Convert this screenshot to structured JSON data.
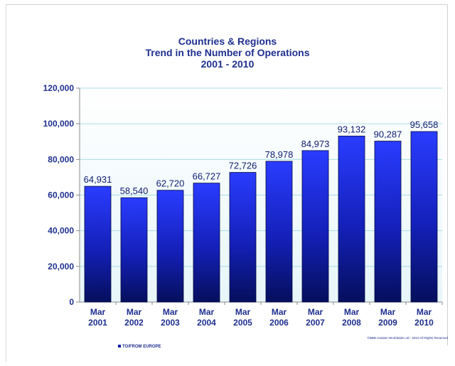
{
  "chart_data": {
    "type": "bar",
    "title": [
      "Countries & Regions",
      "Trend in the Number of Operations",
      "2001 - 2010"
    ],
    "categories": [
      [
        "Mar",
        "2001"
      ],
      [
        "Mar",
        "2002"
      ],
      [
        "Mar",
        "2003"
      ],
      [
        "Mar",
        "2004"
      ],
      [
        "Mar",
        "2005"
      ],
      [
        "Mar",
        "2006"
      ],
      [
        "Mar",
        "2007"
      ],
      [
        "Mar",
        "2008"
      ],
      [
        "Mar",
        "2009"
      ],
      [
        "Mar",
        "2010"
      ]
    ],
    "series": [
      {
        "name": "TO/FROM EUROPE",
        "values": [
          64931,
          58540,
          62720,
          66727,
          72726,
          78978,
          84973,
          93132,
          90287,
          95658
        ],
        "labels": [
          "64,931",
          "58,540",
          "62,720",
          "66,727",
          "72,726",
          "78,978",
          "84,973",
          "93,132",
          "90,287",
          "95,658"
        ]
      }
    ],
    "yticks": [
      "0",
      "20,000",
      "40,000",
      "60,000",
      "80,000",
      "100,000",
      "120,000"
    ],
    "ylim": [
      0,
      120000
    ],
    "grid": true,
    "legend_position": "bottom-left",
    "colors": {
      "bar_top": "#2a3cff",
      "bar_bottom": "#050f5c",
      "text": "#1f2f8f",
      "grid": "#a9dce8"
    }
  },
  "copyright": "©BBB Aviation Worldwide Ltd - 2010 All Rights Reserved"
}
